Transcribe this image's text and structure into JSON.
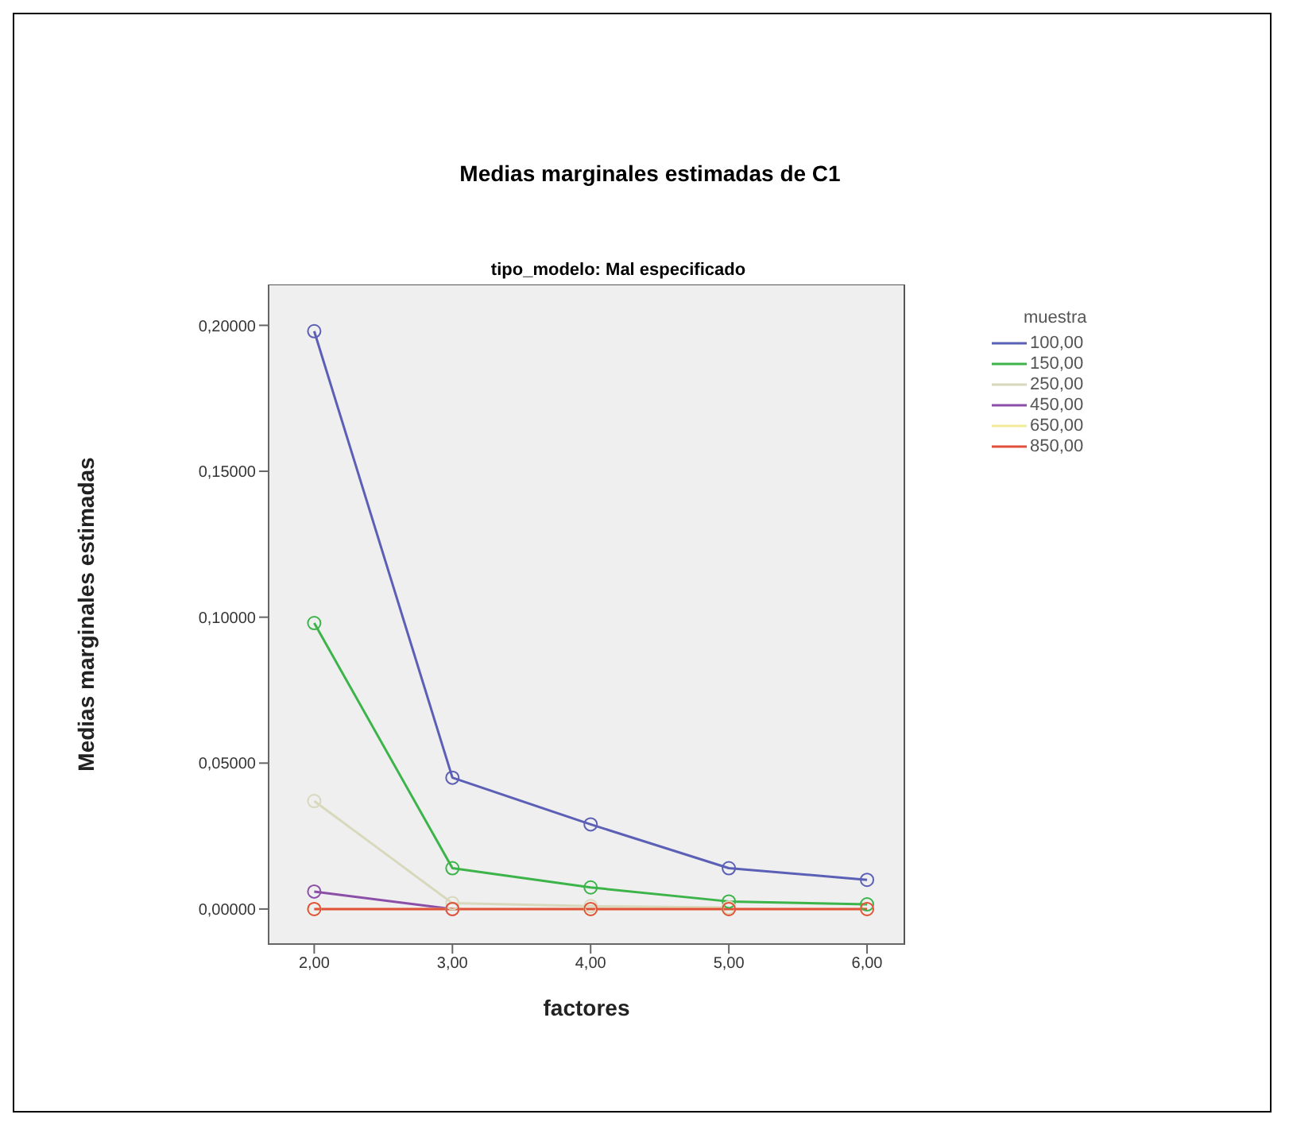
{
  "chart_data": {
    "type": "line",
    "title": "Medias marginales estimadas de C1",
    "subtitle": "tipo_modelo: Mal especificado",
    "xlabel": "factores",
    "ylabel": "Medias marginales estimadas",
    "legend_title": "muestra",
    "legend": "top right",
    "marker": "circle",
    "x": [
      2,
      3,
      4,
      5,
      6
    ],
    "xlim": [
      1.67,
      6.27
    ],
    "xticks": [
      {
        "value": 2,
        "label": "2,00"
      },
      {
        "value": 3,
        "label": "3,00"
      },
      {
        "value": 4,
        "label": "4,00"
      },
      {
        "value": 5,
        "label": "5,00"
      },
      {
        "value": 6,
        "label": "6,00"
      }
    ],
    "ylim": [
      -0.012,
      0.214
    ],
    "yticks": [
      {
        "value": 0,
        "label": "0,00000"
      },
      {
        "value": 0.05,
        "label": "0,05000"
      },
      {
        "value": 0.1,
        "label": "0,10000"
      },
      {
        "value": 0.15,
        "label": "0,15000"
      },
      {
        "value": 0.2,
        "label": "0,20000"
      }
    ],
    "series": [
      {
        "name": "100,00",
        "color": "#5b5fb5",
        "values": [
          0.198,
          0.045,
          0.029,
          0.014,
          0.01
        ]
      },
      {
        "name": "150,00",
        "color": "#3cb44a",
        "values": [
          0.098,
          0.014,
          0.0074,
          0.0026,
          0.0016
        ]
      },
      {
        "name": "250,00",
        "color": "#d8d8bc",
        "values": [
          0.037,
          0.002,
          0.001,
          0.0005,
          null
        ]
      },
      {
        "name": "450,00",
        "color": "#8b4fa8",
        "values": [
          0.006,
          0,
          null,
          null,
          null
        ]
      },
      {
        "name": "650,00",
        "color": "#f2ec9a",
        "values": [
          0,
          0,
          0,
          0,
          0
        ]
      },
      {
        "name": "850,00",
        "color": "#e0503c",
        "values": [
          0,
          0,
          0,
          0,
          0
        ]
      }
    ]
  }
}
